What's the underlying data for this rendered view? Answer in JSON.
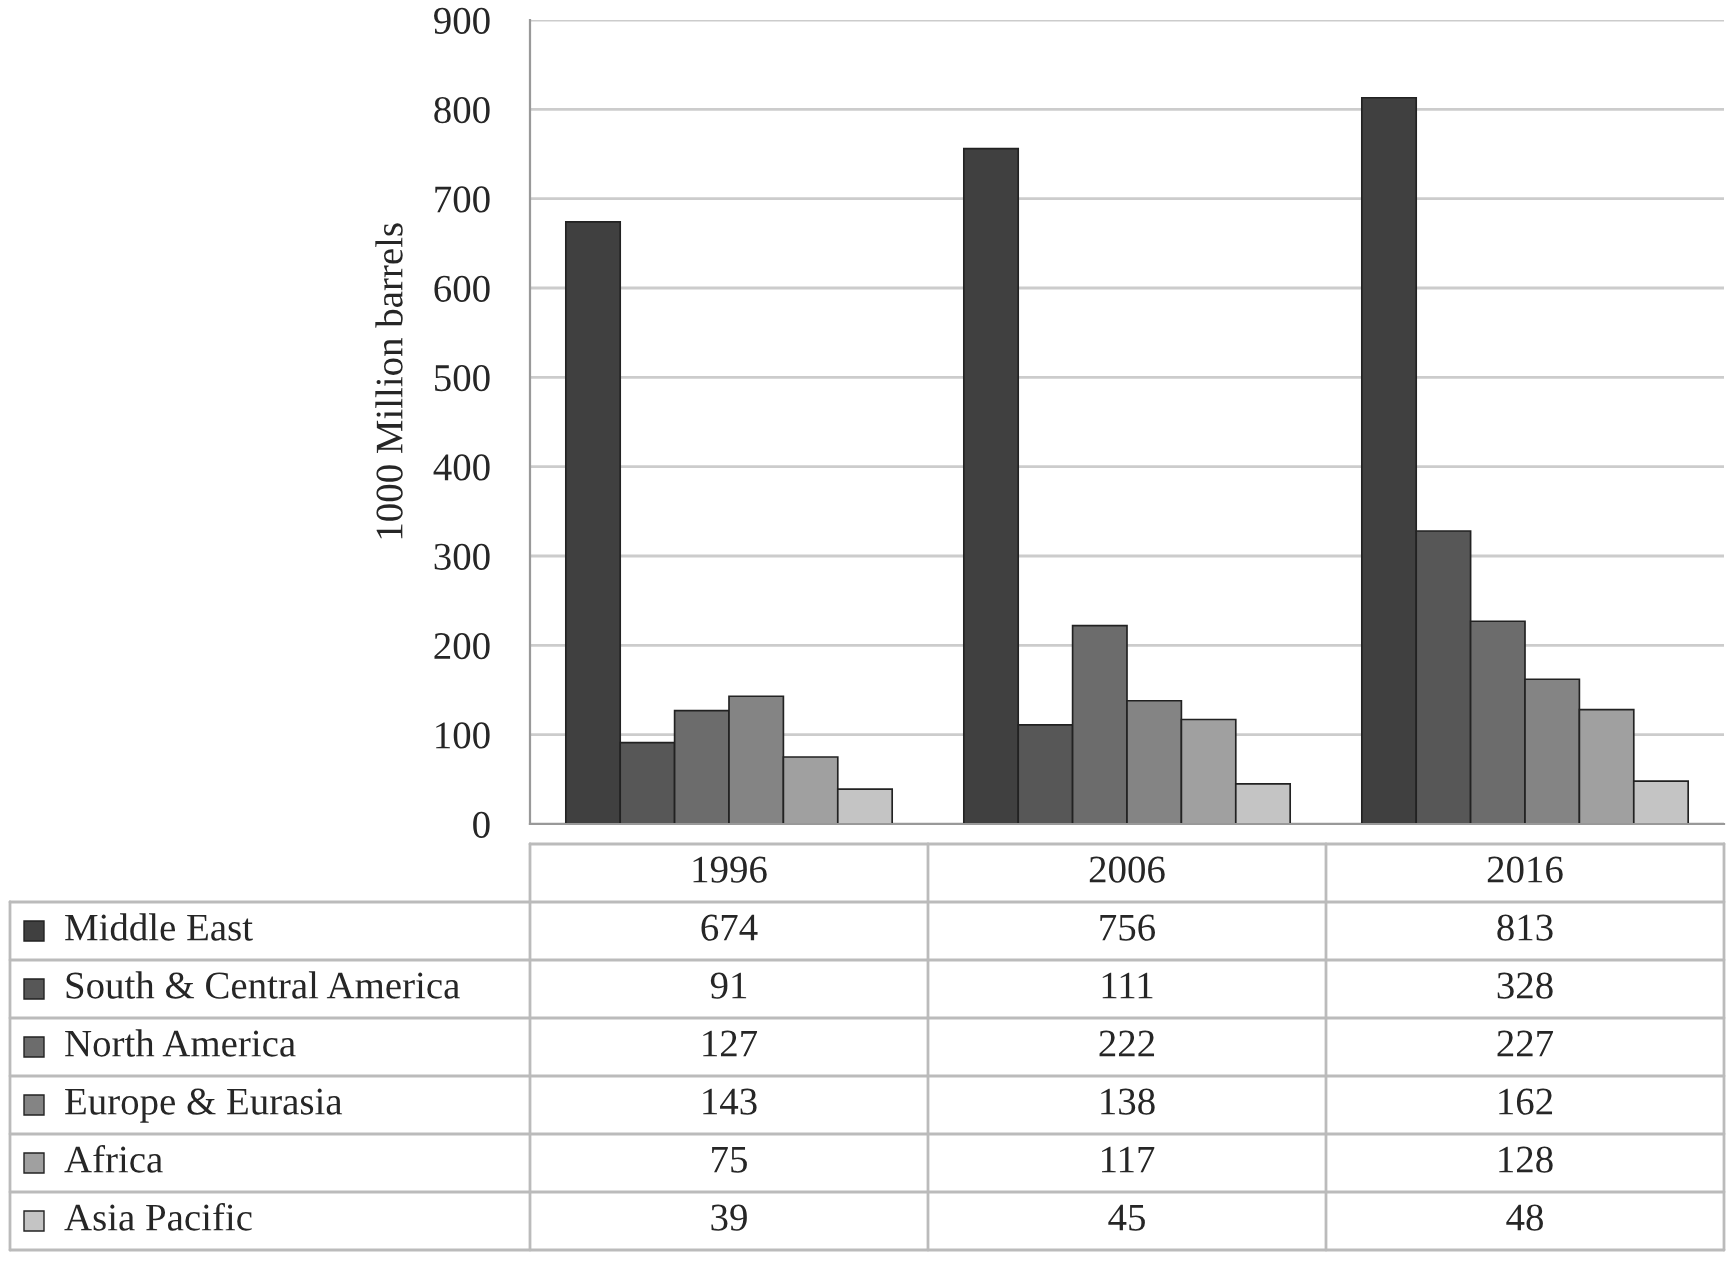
{
  "chart_data": {
    "type": "bar",
    "ylabel": "1000 Million barrels",
    "categories": [
      "1996",
      "2006",
      "2016"
    ],
    "series": [
      {
        "name": "Middle East",
        "color": "#404040",
        "values": [
          674,
          756,
          813
        ]
      },
      {
        "name": "South & Central America",
        "color": "#575757",
        "values": [
          91,
          111,
          328
        ]
      },
      {
        "name": "North America",
        "color": "#6c6c6c",
        "values": [
          127,
          222,
          227
        ]
      },
      {
        "name": "Europe & Eurasia",
        "color": "#848484",
        "values": [
          143,
          138,
          162
        ]
      },
      {
        "name": "Africa",
        "color": "#a0a0a0",
        "values": [
          75,
          117,
          128
        ]
      },
      {
        "name": "Asia Pacific",
        "color": "#c4c4c4",
        "values": [
          39,
          45,
          48
        ]
      }
    ],
    "ylim": [
      0,
      900
    ],
    "yticks": [
      0,
      100,
      200,
      300,
      400,
      500,
      600,
      700,
      800,
      900
    ],
    "grid": "y",
    "legend": "bottom",
    "data_labels": true
  }
}
